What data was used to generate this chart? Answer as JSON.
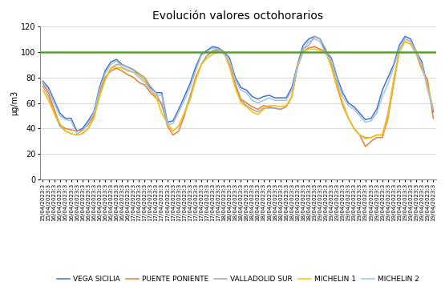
{
  "title": "Evolución valores octohorarios",
  "ylabel": "µg/m3",
  "ylim": [
    0,
    120
  ],
  "yticks": [
    0,
    20,
    40,
    60,
    80,
    100,
    120
  ],
  "threshold": 100,
  "threshold_color": "#5a9e32",
  "series": {
    "VEGA SICILIA": {
      "color": "#4472c4",
      "values": [
        77,
        72,
        62,
        52,
        48,
        48,
        38,
        40,
        46,
        53,
        72,
        85,
        92,
        94,
        90,
        88,
        86,
        82,
        78,
        72,
        68,
        68,
        45,
        46,
        55,
        65,
        75,
        88,
        98,
        101,
        104,
        103,
        100,
        95,
        80,
        72,
        70,
        65,
        63,
        65,
        66,
        64,
        64,
        64,
        72,
        90,
        105,
        110,
        112,
        110,
        100,
        95,
        80,
        68,
        60,
        57,
        52,
        47,
        48,
        55,
        70,
        80,
        90,
        105,
        112,
        110,
        100,
        92,
        72,
        53
      ]
    },
    "PUENTE PONIENTE": {
      "color": "#ed7d31",
      "values": [
        75,
        68,
        55,
        43,
        40,
        39,
        38,
        39,
        43,
        50,
        68,
        80,
        85,
        87,
        85,
        82,
        80,
        76,
        74,
        68,
        64,
        60,
        42,
        35,
        38,
        50,
        65,
        80,
        90,
        97,
        100,
        101,
        99,
        90,
        75,
        63,
        60,
        57,
        55,
        58,
        57,
        56,
        55,
        57,
        65,
        88,
        100,
        103,
        104,
        102,
        100,
        88,
        72,
        58,
        48,
        40,
        35,
        26,
        30,
        33,
        33,
        48,
        75,
        100,
        108,
        106,
        98,
        86,
        78,
        48
      ]
    },
    "VALLADOLID SUR": {
      "color": "#a6a6a6",
      "values": [
        73,
        65,
        52,
        42,
        38,
        36,
        35,
        36,
        40,
        48,
        65,
        78,
        87,
        90,
        90,
        88,
        86,
        83,
        80,
        73,
        68,
        58,
        44,
        38,
        42,
        52,
        65,
        78,
        90,
        97,
        101,
        102,
        100,
        88,
        73,
        62,
        58,
        55,
        53,
        56,
        56,
        56,
        55,
        57,
        65,
        88,
        102,
        105,
        112,
        110,
        102,
        90,
        75,
        60,
        48,
        40,
        35,
        33,
        33,
        35,
        35,
        52,
        78,
        100,
        110,
        108,
        100,
        88,
        73,
        55
      ]
    },
    "MICHELIN 1": {
      "color": "#ffc000",
      "values": [
        70,
        62,
        52,
        44,
        38,
        36,
        35,
        36,
        40,
        48,
        65,
        78,
        87,
        88,
        87,
        85,
        84,
        82,
        78,
        70,
        65,
        52,
        44,
        38,
        42,
        52,
        62,
        78,
        90,
        95,
        98,
        100,
        100,
        88,
        72,
        60,
        57,
        53,
        51,
        55,
        58,
        58,
        57,
        58,
        65,
        90,
        100,
        102,
        102,
        101,
        100,
        88,
        73,
        60,
        48,
        40,
        35,
        32,
        33,
        35,
        35,
        50,
        78,
        100,
        108,
        106,
        100,
        88,
        73,
        55
      ]
    },
    "MICHELIN 2": {
      "color": "#9dc3e6",
      "values": [
        76,
        70,
        60,
        50,
        47,
        46,
        36,
        38,
        44,
        52,
        70,
        83,
        90,
        93,
        88,
        86,
        84,
        80,
        76,
        70,
        66,
        66,
        43,
        44,
        53,
        62,
        72,
        85,
        97,
        100,
        103,
        102,
        98,
        93,
        78,
        70,
        68,
        62,
        60,
        62,
        64,
        62,
        62,
        62,
        70,
        88,
        102,
        108,
        110,
        108,
        98,
        93,
        78,
        65,
        58,
        55,
        50,
        45,
        46,
        52,
        65,
        75,
        88,
        102,
        110,
        108,
        98,
        90,
        70,
        55
      ]
    }
  },
  "n_points": 70,
  "dates": [
    "15/04/2023:3",
    "15/04/2023:3",
    "16/04/2023:3",
    "16/04/2023:3",
    "16/04/2023:3",
    "16/04/2023:3",
    "16/04/2023:3",
    "16/04/2023:3",
    "16/04/2023:3",
    "16/04/2023:3",
    "16/04/2023:3",
    "16/04/2023:3",
    "16/04/2023:3",
    "16/04/2023:3",
    "16/04/2023:3",
    "16/04/2023:3",
    "17/04/2023:3",
    "17/04/2023:3",
    "17/04/2023:3",
    "17/04/2023:3",
    "17/04/2023:3",
    "17/04/2023:3",
    "17/04/2023:3",
    "17/04/2023:3",
    "17/04/2023:3",
    "17/04/2023:3",
    "17/04/2023:3",
    "17/04/2023:3",
    "17/04/2023:3",
    "17/04/2023:3",
    "17/04/2023:3",
    "17/04/2023:3",
    "18/04/2023:3",
    "18/04/2023:3",
    "18/04/2023:3",
    "18/04/2023:3",
    "18/04/2023:3",
    "18/04/2023:3",
    "18/04/2023:3",
    "18/04/2023:3",
    "18/04/2023:3",
    "18/04/2023:3",
    "18/04/2023:3",
    "18/04/2023:3",
    "18/04/2023:3",
    "18/04/2023:3",
    "18/04/2023:3",
    "18/04/2023:3",
    "19/04/2023:3",
    "19/04/2023:3",
    "19/04/2023:3",
    "19/04/2023:3",
    "19/04/2023:3",
    "19/04/2023:3",
    "19/04/2023:3",
    "19/04/2023:3",
    "19/04/2023:3",
    "19/04/2023:3",
    "19/04/2023:3",
    "19/04/2023:3",
    "19/04/2023:3",
    "19/04/2023:3",
    "19/04/2023:3",
    "19/04/2023:3",
    "19/04/2023:3",
    "19/04/2023:3",
    "19/04/2023:3",
    "19/04/2023:3",
    "19/04/2023:3",
    "19/04/2023:3"
  ],
  "background_color": "#ffffff",
  "grid_color": "#d3d3d3",
  "title_fontsize": 10,
  "axis_fontsize": 7,
  "tick_fontsize": 5,
  "legend_fontsize": 6.5,
  "line_width": 1.1
}
